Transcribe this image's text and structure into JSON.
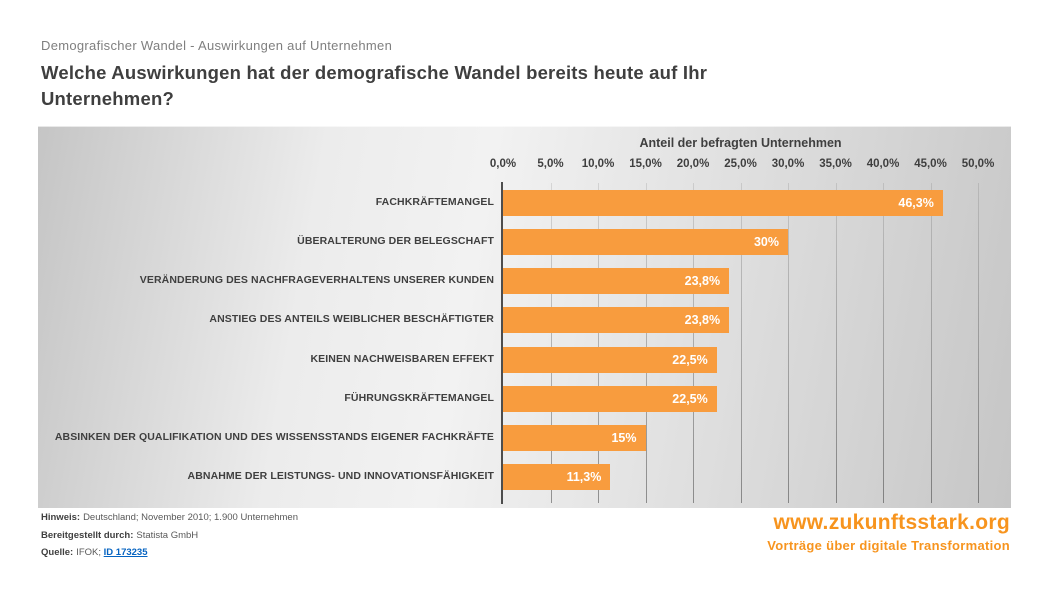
{
  "header": {
    "eyebrow": "Demografischer Wandel - Auswirkungen auf Unternehmen",
    "title": "Welche Auswirkungen hat der demografische Wandel bereits heute auf Ihr Unternehmen?"
  },
  "chart_data": {
    "type": "bar",
    "orientation": "horizontal",
    "axis_title": "Anteil der befragten Unternehmen",
    "categories": [
      "FACHKRÄFTEMANGEL",
      "ÜBERALTERUNG DER BELEGSCHAFT",
      "VERÄNDERUNG DES NACHFRAGEVERHALTENS UNSERER KUNDEN",
      "ANSTIEG DES ANTEILS WEIBLICHER BESCHÄFTIGTER",
      "KEINEN NACHWEISBAREN EFFEKT",
      "FÜHRUNGSKRÄFTEMANGEL",
      "ABSINKEN DER QUALIFIKATION UND DES WISSENSSTANDS EIGENER FACHKRÄFTE",
      "ABNAHME DER LEISTUNGS- UND INNOVATIONSFÄHIGKEIT"
    ],
    "values": [
      46.3,
      30,
      23.8,
      23.8,
      22.5,
      22.5,
      15,
      11.3
    ],
    "value_labels": [
      "46,3%",
      "30%",
      "23,8%",
      "23,8%",
      "22,5%",
      "22,5%",
      "15%",
      "11,3%"
    ],
    "x_ticks": [
      "0,0%",
      "5,0%",
      "10,0%",
      "15,0%",
      "20,0%",
      "25,0%",
      "30,0%",
      "35,0%",
      "40,0%",
      "45,0%",
      "50,0%"
    ],
    "xlim": [
      0,
      50
    ],
    "grid": true,
    "legend": false,
    "bar_color": "#f89c3e",
    "value_label_color": "#ffffff"
  },
  "footer": {
    "hinweis_label": "Hinweis:",
    "hinweis_value": "Deutschland; November 2010; 1.900 Unternehmen",
    "provider_label": "Bereitgestellt durch:",
    "provider_value": "Statista GmbH",
    "source_label": "Quelle:",
    "source_value": "IFOK;",
    "source_link": "ID 173235"
  },
  "branding": {
    "site": "www.zukunftsstark.org",
    "tagline": "Vorträge über digitale Transformation",
    "color": "#f7941e"
  }
}
